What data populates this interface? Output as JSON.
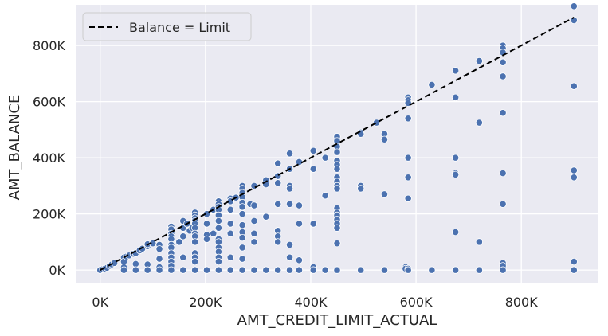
{
  "chart_data": {
    "type": "scatter",
    "xlabel": "AMT_CREDIT_LIMIT_ACTUAL",
    "ylabel": "AMT_BALANCE",
    "xlim": [
      -45000,
      945000
    ],
    "ylim": [
      -45000,
      945000
    ],
    "x_ticks": [
      0,
      200000,
      400000,
      600000,
      800000
    ],
    "x_tick_labels": [
      "0K",
      "200K",
      "400K",
      "600K",
      "800K"
    ],
    "y_ticks": [
      0,
      200000,
      400000,
      600000,
      800000
    ],
    "y_tick_labels": [
      "0K",
      "200K",
      "400K",
      "600K",
      "800K"
    ],
    "grid": true,
    "legend_position": "top-left",
    "reference_line": {
      "label": "Balance = Limit",
      "color": "#000000",
      "style": "dashed",
      "from": [
        0,
        0
      ],
      "to": [
        900000,
        900000
      ]
    },
    "point_color": "#4c72b0",
    "points": [
      [
        0,
        0
      ],
      [
        5000,
        3000
      ],
      [
        9000,
        5000
      ],
      [
        13000,
        8000
      ],
      [
        18000,
        15000
      ],
      [
        22000,
        20000
      ],
      [
        27000,
        25000
      ],
      [
        45000,
        45000
      ],
      [
        45000,
        30000
      ],
      [
        45000,
        10000
      ],
      [
        45000,
        0
      ],
      [
        50000,
        48000
      ],
      [
        55000,
        52000
      ],
      [
        63000,
        58000
      ],
      [
        67500,
        60000
      ],
      [
        67500,
        22000
      ],
      [
        67500,
        0
      ],
      [
        75000,
        70000
      ],
      [
        80000,
        76000
      ],
      [
        90000,
        85000
      ],
      [
        90000,
        92000
      ],
      [
        90000,
        20000
      ],
      [
        90000,
        0
      ],
      [
        100000,
        95000
      ],
      [
        112500,
        90000
      ],
      [
        112500,
        75000
      ],
      [
        112500,
        40000
      ],
      [
        112500,
        10000
      ],
      [
        112500,
        0
      ],
      [
        135000,
        155000
      ],
      [
        135000,
        145000
      ],
      [
        135000,
        130000
      ],
      [
        135000,
        120000
      ],
      [
        135000,
        110000
      ],
      [
        135000,
        90000
      ],
      [
        135000,
        80000
      ],
      [
        135000,
        60000
      ],
      [
        135000,
        45000
      ],
      [
        135000,
        30000
      ],
      [
        135000,
        15000
      ],
      [
        135000,
        0
      ],
      [
        150000,
        100000
      ],
      [
        157500,
        175000
      ],
      [
        157500,
        150000
      ],
      [
        157500,
        120000
      ],
      [
        157500,
        45000
      ],
      [
        157500,
        0
      ],
      [
        165000,
        165000
      ],
      [
        170000,
        140000
      ],
      [
        175000,
        150000
      ],
      [
        180000,
        205000
      ],
      [
        180000,
        195000
      ],
      [
        180000,
        185000
      ],
      [
        180000,
        175000
      ],
      [
        180000,
        165000
      ],
      [
        180000,
        150000
      ],
      [
        180000,
        130000
      ],
      [
        180000,
        120000
      ],
      [
        180000,
        100000
      ],
      [
        180000,
        60000
      ],
      [
        180000,
        45000
      ],
      [
        180000,
        30000
      ],
      [
        180000,
        0
      ],
      [
        202500,
        200000
      ],
      [
        202500,
        165000
      ],
      [
        202500,
        125000
      ],
      [
        202500,
        110000
      ],
      [
        202500,
        0
      ],
      [
        215000,
        215000
      ],
      [
        215000,
        130000
      ],
      [
        225000,
        245000
      ],
      [
        225000,
        235000
      ],
      [
        225000,
        225000
      ],
      [
        225000,
        215000
      ],
      [
        225000,
        195000
      ],
      [
        225000,
        175000
      ],
      [
        225000,
        150000
      ],
      [
        225000,
        110000
      ],
      [
        225000,
        100000
      ],
      [
        225000,
        80000
      ],
      [
        225000,
        65000
      ],
      [
        225000,
        45000
      ],
      [
        225000,
        30000
      ],
      [
        225000,
        0
      ],
      [
        247500,
        255000
      ],
      [
        247500,
        245000
      ],
      [
        247500,
        215000
      ],
      [
        247500,
        165000
      ],
      [
        247500,
        130000
      ],
      [
        247500,
        45000
      ],
      [
        247500,
        0
      ],
      [
        258000,
        258000
      ],
      [
        270000,
        300000
      ],
      [
        270000,
        290000
      ],
      [
        270000,
        275000
      ],
      [
        270000,
        260000
      ],
      [
        270000,
        240000
      ],
      [
        270000,
        225000
      ],
      [
        270000,
        200000
      ],
      [
        270000,
        160000
      ],
      [
        270000,
        135000
      ],
      [
        270000,
        115000
      ],
      [
        270000,
        80000
      ],
      [
        270000,
        40000
      ],
      [
        270000,
        0
      ],
      [
        285000,
        235000
      ],
      [
        292500,
        300000
      ],
      [
        292500,
        230000
      ],
      [
        292500,
        175000
      ],
      [
        292500,
        130000
      ],
      [
        292500,
        100000
      ],
      [
        292500,
        0
      ],
      [
        315000,
        320000
      ],
      [
        315000,
        305000
      ],
      [
        315000,
        190000
      ],
      [
        315000,
        0
      ],
      [
        337500,
        380000
      ],
      [
        337500,
        335000
      ],
      [
        337500,
        310000
      ],
      [
        337500,
        235000
      ],
      [
        337500,
        140000
      ],
      [
        337500,
        120000
      ],
      [
        337500,
        100000
      ],
      [
        337500,
        0
      ],
      [
        360000,
        415000
      ],
      [
        360000,
        360000
      ],
      [
        360000,
        300000
      ],
      [
        360000,
        290000
      ],
      [
        360000,
        235000
      ],
      [
        360000,
        90000
      ],
      [
        360000,
        45000
      ],
      [
        360000,
        0
      ],
      [
        378000,
        385000
      ],
      [
        378000,
        230000
      ],
      [
        378000,
        165000
      ],
      [
        378000,
        35000
      ],
      [
        378000,
        0
      ],
      [
        405000,
        425000
      ],
      [
        405000,
        360000
      ],
      [
        405000,
        165000
      ],
      [
        405000,
        10000
      ],
      [
        405000,
        0
      ],
      [
        427500,
        400000
      ],
      [
        427500,
        265000
      ],
      [
        427500,
        0
      ],
      [
        450000,
        475000
      ],
      [
        450000,
        460000
      ],
      [
        450000,
        440000
      ],
      [
        450000,
        420000
      ],
      [
        450000,
        390000
      ],
      [
        450000,
        375000
      ],
      [
        450000,
        360000
      ],
      [
        450000,
        330000
      ],
      [
        450000,
        315000
      ],
      [
        450000,
        300000
      ],
      [
        450000,
        290000
      ],
      [
        450000,
        220000
      ],
      [
        450000,
        205000
      ],
      [
        450000,
        195000
      ],
      [
        450000,
        180000
      ],
      [
        450000,
        165000
      ],
      [
        450000,
        150000
      ],
      [
        450000,
        95000
      ],
      [
        450000,
        0
      ],
      [
        495000,
        490000
      ],
      [
        495000,
        485000
      ],
      [
        495000,
        300000
      ],
      [
        495000,
        290000
      ],
      [
        495000,
        0
      ],
      [
        525000,
        525000
      ],
      [
        540000,
        485000
      ],
      [
        540000,
        465000
      ],
      [
        540000,
        270000
      ],
      [
        540000,
        0
      ],
      [
        580000,
        10000
      ],
      [
        580000,
        5000
      ],
      [
        585000,
        615000
      ],
      [
        585000,
        605000
      ],
      [
        585000,
        595000
      ],
      [
        585000,
        540000
      ],
      [
        585000,
        400000
      ],
      [
        585000,
        330000
      ],
      [
        585000,
        255000
      ],
      [
        585000,
        5000
      ],
      [
        585000,
        0
      ],
      [
        630000,
        660000
      ],
      [
        630000,
        0
      ],
      [
        675000,
        710000
      ],
      [
        675000,
        615000
      ],
      [
        675000,
        400000
      ],
      [
        675000,
        345000
      ],
      [
        675000,
        340000
      ],
      [
        675000,
        135000
      ],
      [
        675000,
        0
      ],
      [
        720000,
        745000
      ],
      [
        720000,
        525000
      ],
      [
        720000,
        100000
      ],
      [
        720000,
        0
      ],
      [
        765000,
        800000
      ],
      [
        765000,
        790000
      ],
      [
        765000,
        775000
      ],
      [
        765000,
        740000
      ],
      [
        765000,
        690000
      ],
      [
        765000,
        560000
      ],
      [
        765000,
        345000
      ],
      [
        765000,
        235000
      ],
      [
        765000,
        25000
      ],
      [
        765000,
        15000
      ],
      [
        765000,
        0
      ],
      [
        900000,
        940000
      ],
      [
        900000,
        890000
      ],
      [
        900000,
        655000
      ],
      [
        900000,
        355000
      ],
      [
        900000,
        330000
      ],
      [
        900000,
        30000
      ],
      [
        900000,
        0
      ]
    ]
  }
}
